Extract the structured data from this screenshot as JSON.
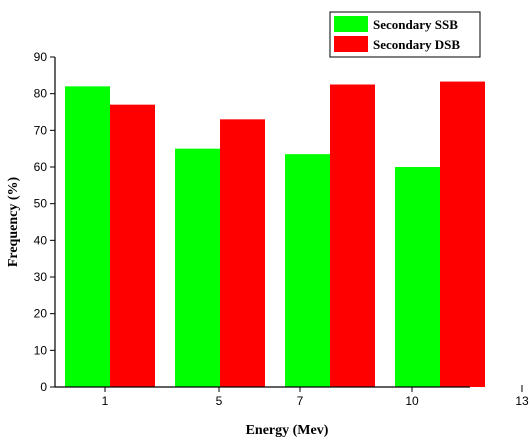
{
  "chart_data": {
    "type": "bar",
    "categories": [
      "1",
      "5",
      "7",
      "10"
    ],
    "extra_x_tick": "13",
    "series": [
      {
        "name": "Secondary SSB",
        "values": [
          82,
          65,
          63.5,
          60
        ],
        "color": "#00ff00"
      },
      {
        "name": "Secondary DSB",
        "values": [
          77,
          73,
          82.5,
          83.3
        ],
        "color": "#ff0000"
      }
    ],
    "xlabel": "Energy (Mev)",
    "ylabel": "Frequency (%)",
    "ylim": [
      0,
      90
    ],
    "yticks": [
      0,
      10,
      20,
      30,
      40,
      50,
      60,
      70,
      80,
      90
    ],
    "grid": false,
    "legend_position": "top-right"
  }
}
